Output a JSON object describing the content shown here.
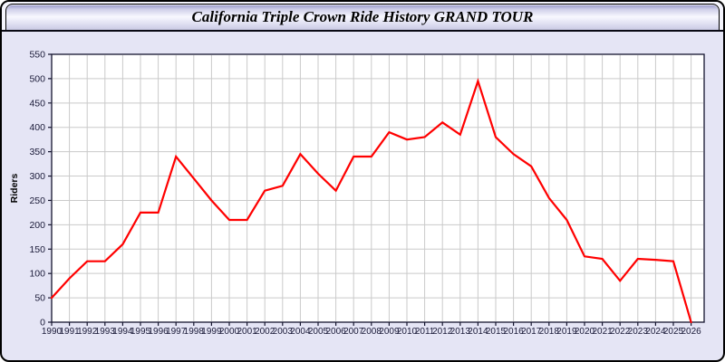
{
  "window": {
    "title": "California Triple Crown Ride History GRAND TOUR"
  },
  "colors": {
    "page_background": "#e5e5f5",
    "outer_border": "#000000",
    "titlebar_gradient_top": "#9393c7",
    "titlebar_gradient_middle": "#f8f8ff",
    "titlebar_gradient_bottom": "#c9c9e4",
    "plot_background": "#ffffff",
    "grid_color": "#cacaca",
    "axis_frame_color": "#14142e",
    "tick_label_color": "#1a1a38",
    "line_color": "#ff0000"
  },
  "chart_data": {
    "type": "line",
    "title": "California Triple Crown Ride History GRAND TOUR",
    "xlabel": "",
    "ylabel": "Riders",
    "grid": true,
    "legend": "none",
    "ylim": [
      0,
      550
    ],
    "ytick_step": 50,
    "ytick_labels": [
      "0",
      "50",
      "100",
      "150",
      "200",
      "250",
      "300",
      "350",
      "400",
      "450",
      "500",
      "550"
    ],
    "x": [
      1990,
      1991,
      1992,
      1993,
      1994,
      1995,
      1996,
      1997,
      1998,
      1999,
      2000,
      2001,
      2002,
      2003,
      2004,
      2005,
      2006,
      2007,
      2008,
      2009,
      2010,
      2011,
      2012,
      2013,
      2014,
      2015,
      2016,
      2017,
      2018,
      2019,
      2020,
      2021,
      2022,
      2023,
      2024,
      2025,
      2026
    ],
    "series": [
      {
        "name": "Riders",
        "values": [
          50,
          90,
          125,
          125,
          160,
          225,
          225,
          340,
          295,
          250,
          210,
          210,
          270,
          280,
          345,
          305,
          270,
          340,
          340,
          390,
          375,
          380,
          410,
          385,
          495,
          380,
          345,
          320,
          255,
          210,
          135,
          130,
          85,
          130,
          128,
          125,
          0
        ]
      }
    ]
  }
}
